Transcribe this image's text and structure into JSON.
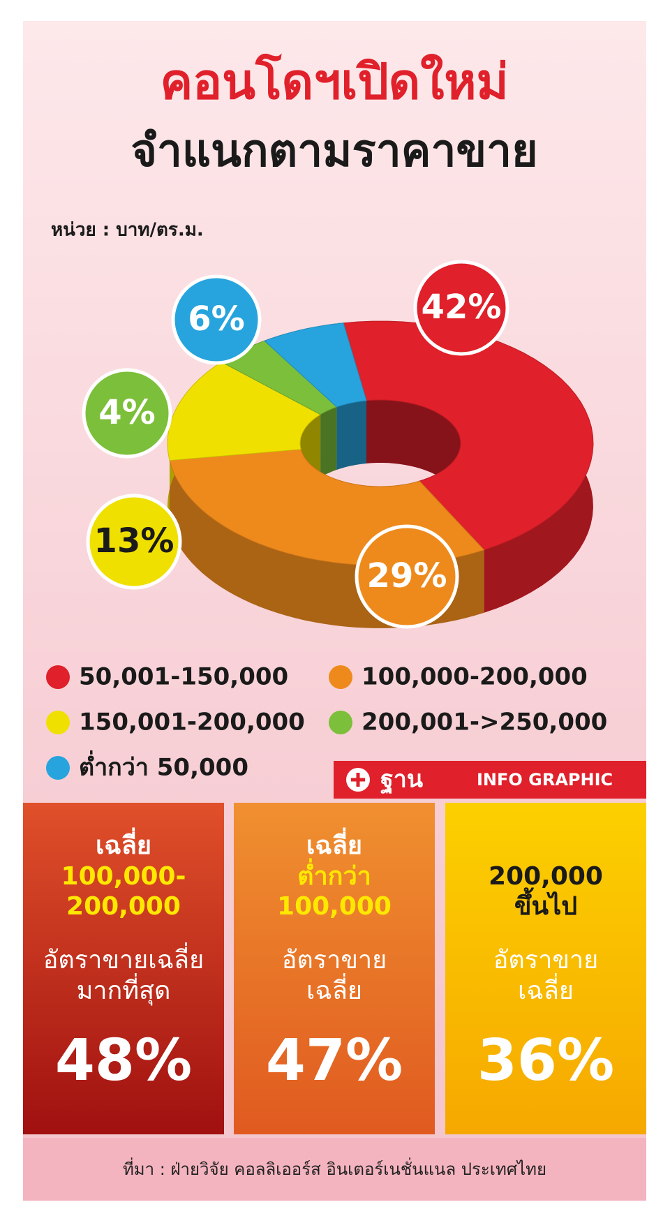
{
  "chart_data": {
    "type": "pie",
    "title": "คอนโดฯเปิดใหม่",
    "subtitle": "จำแนกตามราคาขาย",
    "unit_label": "หน่วย  :  บาท/ตร.ม.",
    "categories": [
      "50,001-150,000",
      "100,000-200,000",
      "150,001-200,000",
      "200,001->250,000",
      "ต่ำกว่า  50,000"
    ],
    "values": [
      42,
      29,
      13,
      4,
      6
    ],
    "value_labels": [
      "42%",
      "29%",
      "13%",
      "4%",
      "6%"
    ],
    "colors": [
      "#e0202a",
      "#ee8a1c",
      "#f0e000",
      "#7cbf3a",
      "#27a4dd"
    ]
  },
  "brand": {
    "name": "ฐาน",
    "tag": "INFO GRAPHIC"
  },
  "panels": [
    {
      "heading": "เฉลี่ย",
      "range": [
        "100,000-",
        "200,000"
      ],
      "desc": [
        "อัตราขายเฉลี่ย",
        "มากที่สุด"
      ],
      "rate": "48%"
    },
    {
      "heading": "เฉลี่ย",
      "range": [
        "ต่ำกว่า",
        "100,000"
      ],
      "desc": [
        "อัตราขาย",
        "เฉลี่ย"
      ],
      "rate": "47%"
    },
    {
      "heading": "",
      "range": [
        "200,000",
        "ขึ้นไป"
      ],
      "desc": [
        "อัตราขาย",
        "เฉลี่ย"
      ],
      "rate": "36%"
    }
  ],
  "source": "ที่มา  :  ฝ่ายวิจัย  คอลลิเออร์ส  อินเตอร์เนชั่นแนล  ประเทศไทย"
}
